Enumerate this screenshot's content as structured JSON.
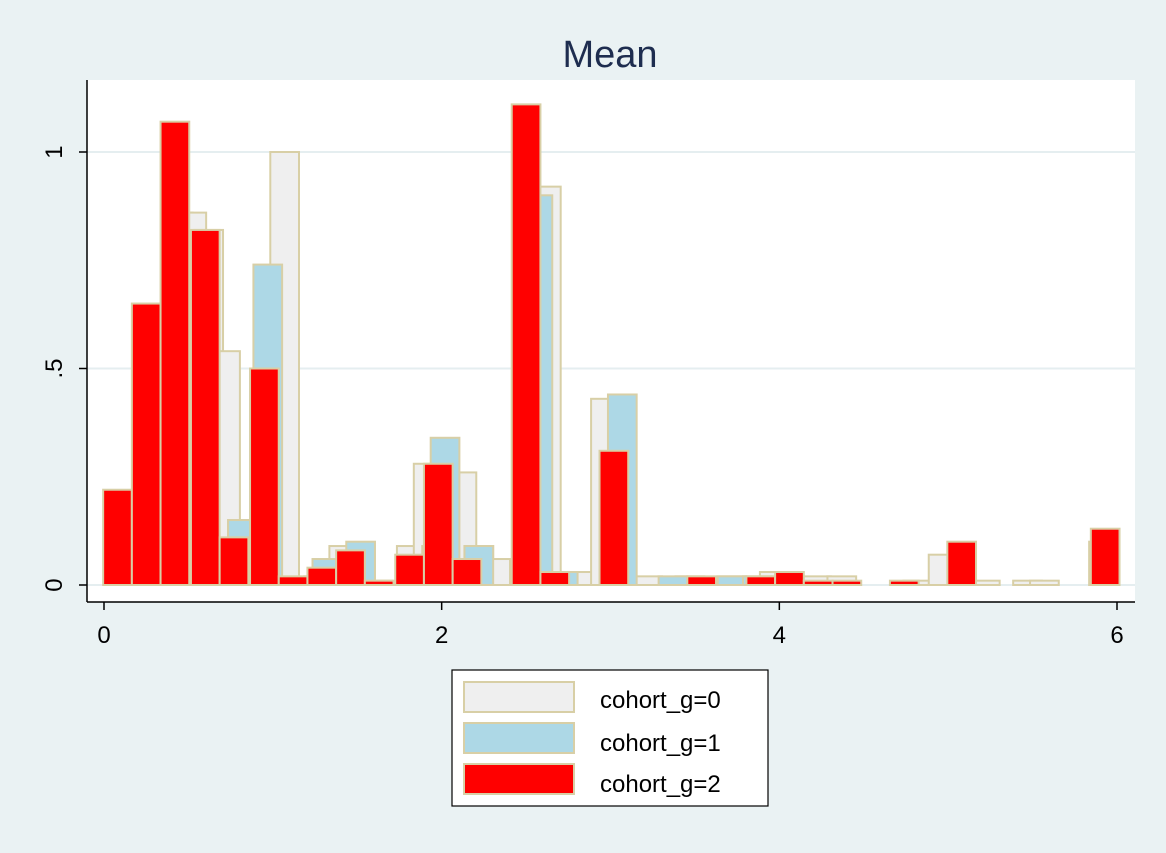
{
  "chart_data": {
    "type": "bar",
    "title": "Mean",
    "xlabel": "",
    "ylabel": "",
    "xlim": [
      -0.1,
      6.1
    ],
    "ylim": [
      -0.04,
      1.16
    ],
    "xticks": [
      {
        "value": 0,
        "label": "0"
      },
      {
        "value": 2,
        "label": "2"
      },
      {
        "value": 4,
        "label": "4"
      },
      {
        "value": 6,
        "label": "6"
      }
    ],
    "yticks": [
      {
        "value": 0,
        "label": "0"
      },
      {
        "value": 0.5,
        "label": ".5"
      },
      {
        "value": 1,
        "label": "1"
      }
    ],
    "grid": "horizontal",
    "bar_width": 0.17,
    "legend": {
      "placement": "bottom-center",
      "entries": [
        "cohort_g=0",
        "cohort_g=1",
        "cohort_g=2"
      ]
    },
    "colors": {
      "outline": "#d8cfa6",
      "title": "#1e2d4f",
      "plot_background": "#ffffff",
      "page_background": "#eaf2f3",
      "grid": "#e5eef0"
    },
    "series": [
      {
        "name": "cohort_g=0",
        "color": "#efefef",
        "x": [
          0.44,
          0.52,
          0.62,
          0.72,
          0.82,
          1.07,
          1.27,
          1.42,
          1.62,
          1.82,
          1.92,
          2.12,
          2.22,
          2.32,
          2.62,
          2.87,
          2.97,
          3.22,
          3.47,
          3.72,
          3.97,
          4.22,
          4.37,
          4.82,
          4.97,
          5.22,
          5.47,
          5.57,
          5.92
        ],
        "values": [
          0.86,
          0.86,
          0.82,
          0.54,
          0.15,
          1.0,
          0.02,
          0.09,
          0.01,
          0.09,
          0.28,
          0.26,
          0.09,
          0.06,
          0.92,
          0.03,
          0.43,
          0.02,
          0.02,
          0.02,
          0.03,
          0.02,
          0.02,
          0.01,
          0.07,
          0.01,
          0.01,
          0.01,
          0.1
        ]
      },
      {
        "name": "cohort_g=1",
        "color": "#add8e6",
        "x": [
          0.82,
          0.97,
          1.32,
          1.52,
          1.97,
          2.02,
          2.22,
          2.57,
          2.72,
          3.07,
          3.37,
          3.72,
          3.87
        ],
        "values": [
          0.15,
          0.74,
          0.06,
          0.1,
          0.09,
          0.34,
          0.09,
          0.9,
          0.03,
          0.44,
          0.02,
          0.02,
          0.02
        ]
      },
      {
        "name": "cohort_g=2",
        "color": "#ff0000",
        "x": [
          0.08,
          0.25,
          0.42,
          0.6,
          0.77,
          0.95,
          1.12,
          1.29,
          1.46,
          1.63,
          1.81,
          1.98,
          2.15,
          2.5,
          2.67,
          3.02,
          3.54,
          3.89,
          4.06,
          4.23,
          4.4,
          4.74,
          5.08,
          5.93
        ],
        "values": [
          0.22,
          0.65,
          1.07,
          0.82,
          0.11,
          0.5,
          0.02,
          0.04,
          0.08,
          0.01,
          0.07,
          0.28,
          0.06,
          1.11,
          0.03,
          0.31,
          0.02,
          0.02,
          0.03,
          0.01,
          0.01,
          0.01,
          0.1,
          0.13
        ]
      }
    ]
  }
}
